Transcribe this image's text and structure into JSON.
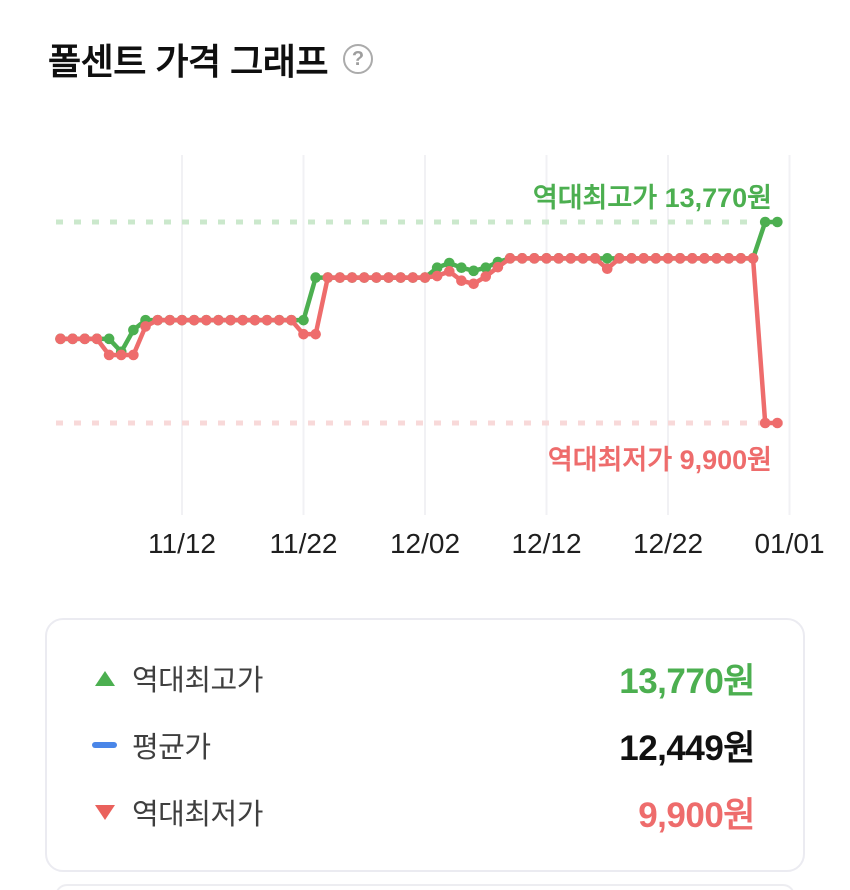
{
  "header": {
    "title": "폴센트 가격 그래프",
    "help_glyph": "?"
  },
  "chart": {
    "annotation_high": "역대최고가 13,770원",
    "annotation_low": "역대최저가 9,900원",
    "colors": {
      "high_line": "#4caf50",
      "low_line": "#ee6c6c",
      "high_dash": "#cbe8cc",
      "low_dash": "#f8d9d9",
      "grid": "#f1f1f4"
    }
  },
  "chart_data": {
    "type": "line",
    "title": "폴센트 가격 그래프",
    "grid": "vertical-only",
    "ylim": [
      9900,
      13770
    ],
    "x_ticks": [
      "11/12",
      "11/22",
      "12/02",
      "12/12",
      "12/22",
      "01/01"
    ],
    "reference_lines": [
      {
        "label": "역대최고가 13,770원",
        "value": 13770,
        "color": "#4caf50"
      },
      {
        "label": "역대최저가 9,900원",
        "value": 9900,
        "color": "#ee6c6c"
      }
    ],
    "x": [
      "11/02",
      "11/03",
      "11/04",
      "11/05",
      "11/06",
      "11/07",
      "11/08",
      "11/09",
      "11/10",
      "11/11",
      "11/12",
      "11/13",
      "11/14",
      "11/15",
      "11/16",
      "11/17",
      "11/18",
      "11/19",
      "11/20",
      "11/21",
      "11/22",
      "11/23",
      "11/24",
      "11/25",
      "11/26",
      "11/27",
      "11/28",
      "11/29",
      "11/30",
      "12/01",
      "12/02",
      "12/03",
      "12/04",
      "12/05",
      "12/06",
      "12/07",
      "12/08",
      "12/09",
      "12/10",
      "12/11",
      "12/12",
      "12/13",
      "12/14",
      "12/15",
      "12/16",
      "12/17",
      "12/18",
      "12/19",
      "12/20",
      "12/21",
      "12/22",
      "12/23",
      "12/24",
      "12/25",
      "12/26",
      "12/27",
      "12/28",
      "12/29",
      "12/30",
      "12/31"
    ],
    "series": [
      {
        "name": "최고가",
        "color": "#4caf50",
        "values": [
          11520,
          11520,
          11520,
          11520,
          11520,
          11270,
          11690,
          11880,
          11880,
          11880,
          11880,
          11880,
          11880,
          11880,
          11880,
          11880,
          11880,
          11880,
          11880,
          11880,
          11880,
          12700,
          12700,
          12700,
          12700,
          12700,
          12700,
          12700,
          12700,
          12700,
          12700,
          12890,
          12980,
          12890,
          12830,
          12890,
          13000,
          13070,
          13070,
          13070,
          13070,
          13070,
          13070,
          13070,
          13070,
          13070,
          13070,
          13070,
          13070,
          13070,
          13070,
          13070,
          13070,
          13070,
          13070,
          13070,
          13070,
          13070,
          13770,
          13770
        ]
      },
      {
        "name": "최저가",
        "color": "#ee6c6c",
        "values": [
          11520,
          11520,
          11520,
          11520,
          11210,
          11210,
          11210,
          11760,
          11880,
          11880,
          11880,
          11880,
          11880,
          11880,
          11880,
          11880,
          11880,
          11880,
          11880,
          11880,
          11610,
          11610,
          12700,
          12700,
          12700,
          12700,
          12700,
          12700,
          12700,
          12700,
          12700,
          12730,
          12820,
          12640,
          12580,
          12720,
          12900,
          13070,
          13070,
          13070,
          13070,
          13070,
          13070,
          13070,
          13070,
          12870,
          13070,
          13070,
          13070,
          13070,
          13070,
          13070,
          13070,
          13070,
          13070,
          13070,
          13070,
          13070,
          9900,
          9900
        ]
      }
    ]
  },
  "legend": {
    "rows": [
      {
        "marker": "triangle-up",
        "marker_color": "#4caf50",
        "label": "역대최고가",
        "value": "13,770원",
        "value_color": "#4caf50"
      },
      {
        "marker": "dash",
        "marker_color": "#4a86e8",
        "label": "평균가",
        "value": "12,449원",
        "value_color": "#111111"
      },
      {
        "marker": "triangle-down",
        "marker_color": "#ea615c",
        "label": "역대최저가",
        "value": "9,900원",
        "value_color": "#ee6c6c"
      }
    ]
  }
}
